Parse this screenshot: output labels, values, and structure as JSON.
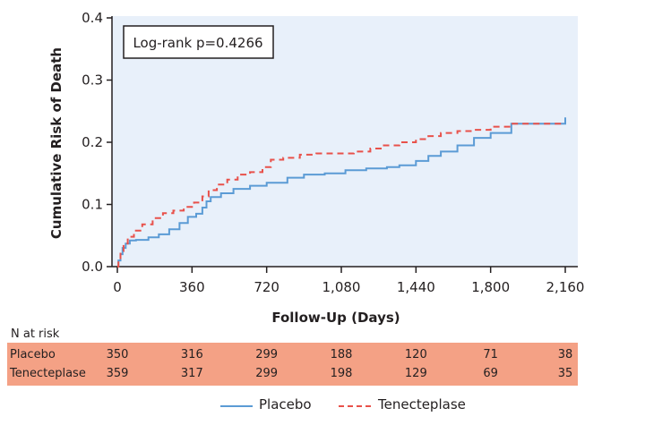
{
  "chart_data": {
    "type": "line",
    "xlabel": "Follow-Up (Days)",
    "ylabel": "Cumulative Risk of Death",
    "annotation": "Log-rank p=0.4266",
    "xlim": [
      0,
      2160
    ],
    "ylim": [
      0,
      0.4
    ],
    "x_ticks": [
      0,
      360,
      720,
      1080,
      1440,
      1800,
      2160
    ],
    "x_tick_labels": [
      "0",
      "360",
      "720",
      "1,080",
      "1,440",
      "1,800",
      "2,160"
    ],
    "y_ticks": [
      0.0,
      0.1,
      0.2,
      0.3,
      0.4
    ],
    "y_tick_labels": [
      "0.0",
      "0.1",
      "0.2",
      "0.3",
      "0.4"
    ],
    "grid": false,
    "background_color": "#e8f0fa",
    "series": [
      {
        "name": "Placebo",
        "color": "#5b9bd5",
        "dash": "solid",
        "x": [
          0,
          5,
          15,
          25,
          40,
          60,
          90,
          150,
          200,
          250,
          300,
          340,
          380,
          410,
          430,
          450,
          500,
          560,
          640,
          720,
          820,
          900,
          1000,
          1100,
          1200,
          1300,
          1360,
          1440,
          1500,
          1560,
          1640,
          1720,
          1800,
          1900,
          2160
        ],
        "y": [
          0.0,
          0.01,
          0.02,
          0.03,
          0.037,
          0.042,
          0.043,
          0.047,
          0.052,
          0.06,
          0.07,
          0.08,
          0.085,
          0.095,
          0.105,
          0.112,
          0.118,
          0.125,
          0.13,
          0.135,
          0.143,
          0.148,
          0.15,
          0.155,
          0.158,
          0.16,
          0.163,
          0.17,
          0.178,
          0.185,
          0.195,
          0.207,
          0.215,
          0.23,
          0.24
        ]
      },
      {
        "name": "Tenecteplase",
        "color": "#e8514a",
        "dash": "dashed",
        "x": [
          0,
          5,
          15,
          30,
          50,
          80,
          120,
          170,
          220,
          270,
          320,
          370,
          410,
          440,
          480,
          530,
          580,
          640,
          700,
          740,
          800,
          880,
          960,
          1060,
          1140,
          1220,
          1280,
          1360,
          1440,
          1500,
          1560,
          1640,
          1720,
          1800,
          1900,
          2160
        ],
        "y": [
          0.0,
          0.012,
          0.025,
          0.037,
          0.048,
          0.058,
          0.068,
          0.078,
          0.086,
          0.09,
          0.096,
          0.103,
          0.113,
          0.123,
          0.132,
          0.14,
          0.148,
          0.152,
          0.16,
          0.172,
          0.175,
          0.18,
          0.182,
          0.182,
          0.185,
          0.19,
          0.195,
          0.2,
          0.205,
          0.21,
          0.215,
          0.218,
          0.22,
          0.225,
          0.23,
          0.23
        ]
      }
    ]
  },
  "risk_table": {
    "title": "N at risk",
    "days": [
      0,
      360,
      720,
      1080,
      1440,
      1800,
      2160
    ],
    "rows": [
      {
        "label": "Placebo",
        "values": [
          "350",
          "316",
          "299",
          "188",
          "120",
          "71",
          "38"
        ]
      },
      {
        "label": "Tenecteplase",
        "values": [
          "359",
          "317",
          "299",
          "198",
          "129",
          "69",
          "35"
        ]
      }
    ],
    "background_color": "#f4a185"
  },
  "legend": [
    {
      "label": "Placebo",
      "color": "#5b9bd5",
      "dash": "solid"
    },
    {
      "label": "Tenecteplase",
      "color": "#e8514a",
      "dash": "dashed"
    }
  ]
}
